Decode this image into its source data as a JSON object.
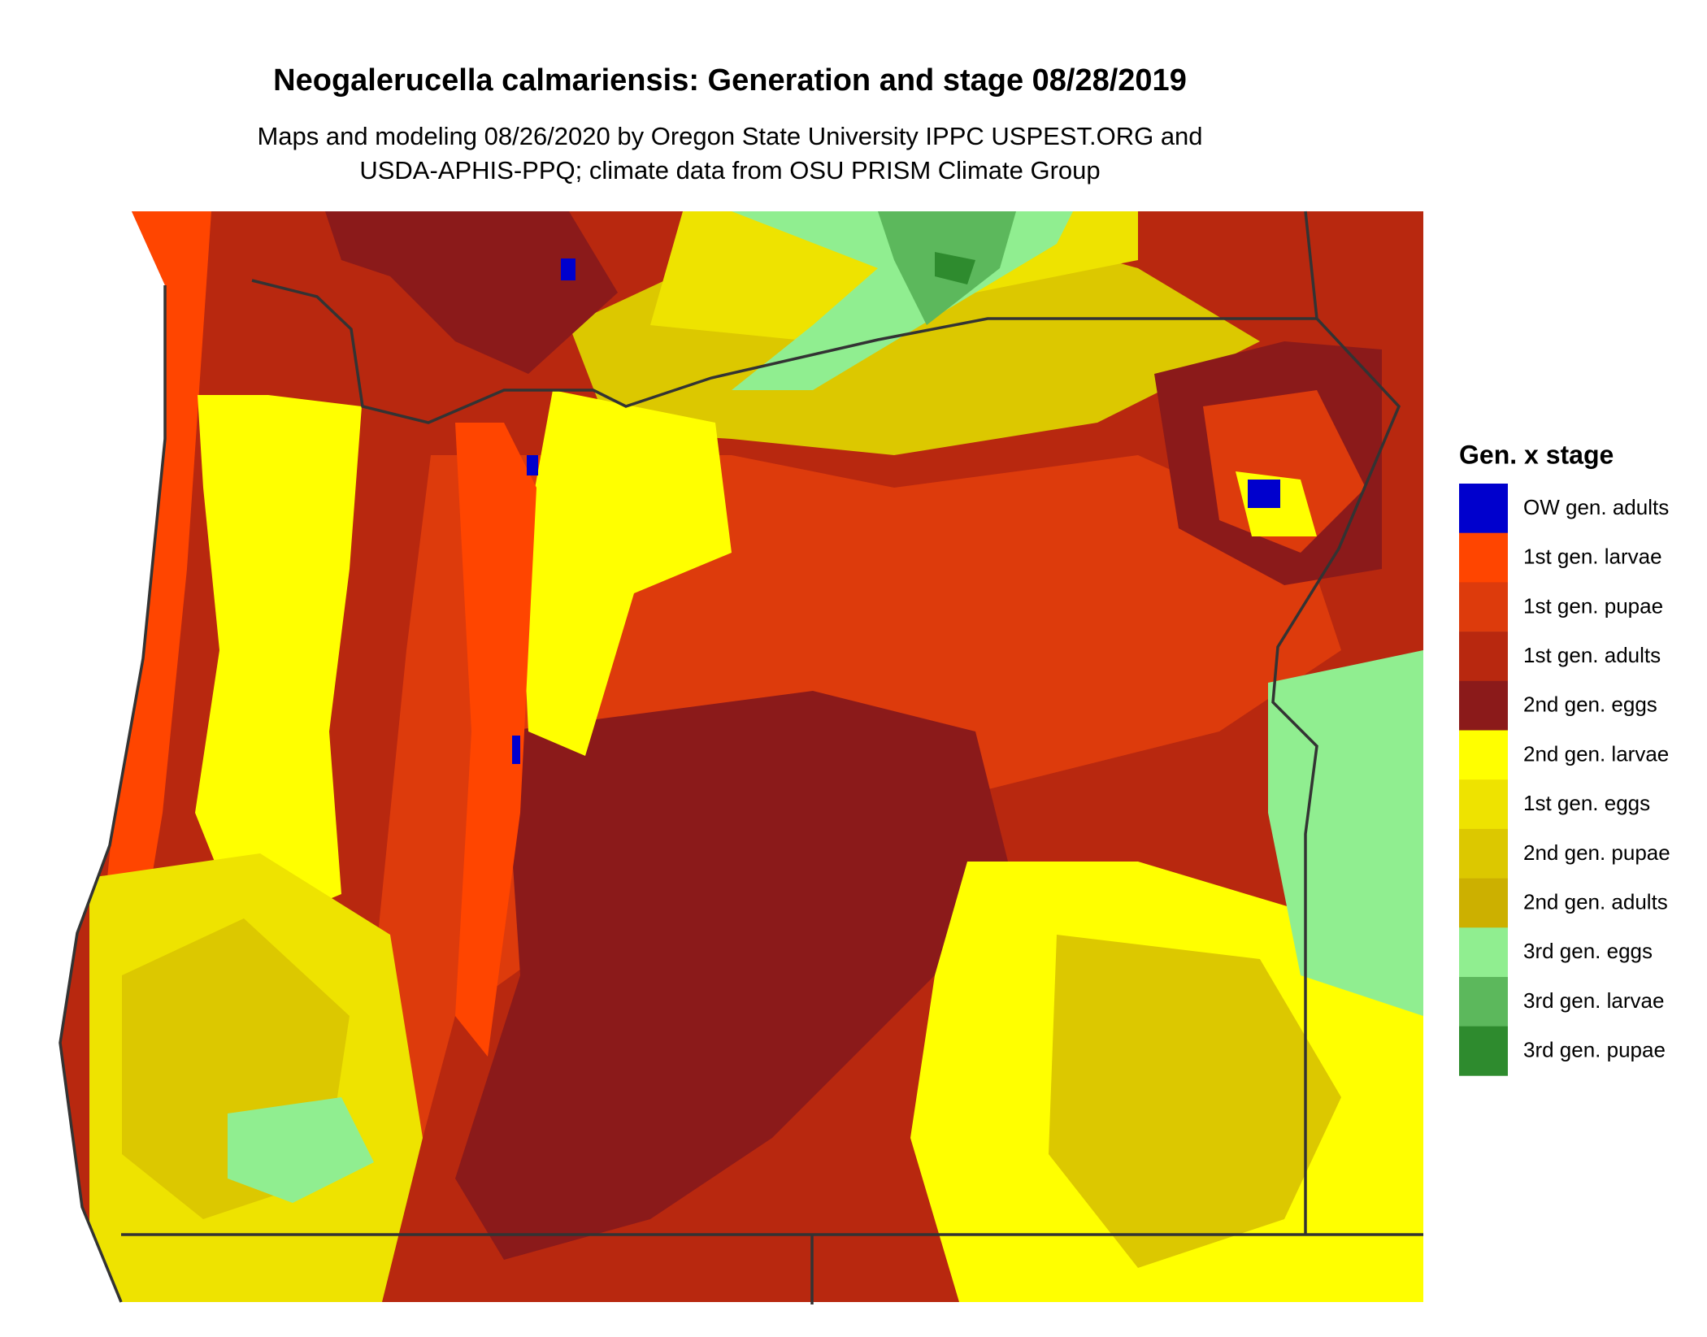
{
  "title": "Neogalerucella calmariensis: Generation and stage 08/28/2019",
  "subtitle": [
    "Maps and modeling 08/26/2020 by Oregon State University IPPC USPEST.ORG and",
    "USDA-APHIS-PPQ; climate data from OSU PRISM Climate Group"
  ],
  "legend": {
    "title": "Gen. x stage",
    "items": [
      {
        "label": "OW gen. adults",
        "color": "#0000cd"
      },
      {
        "label": "1st gen. larvae",
        "color": "#ff4500"
      },
      {
        "label": "1st gen. pupae",
        "color": "#dd3b0c"
      },
      {
        "label": "1st gen. adults",
        "color": "#b8280f"
      },
      {
        "label": "2nd gen. eggs",
        "color": "#8b1a1a"
      },
      {
        "label": "2nd gen. larvae",
        "color": "#ffff00"
      },
      {
        "label": "1st gen. eggs",
        "color": "#eee300"
      },
      {
        "label": "2nd gen. pupae",
        "color": "#dcc800"
      },
      {
        "label": "2nd gen. adults",
        "color": "#ccb000"
      },
      {
        "label": "3rd gen. eggs",
        "color": "#90ee90"
      },
      {
        "label": "3rd gen. larvae",
        "color": "#5cb85c"
      },
      {
        "label": "3rd gen. pupae",
        "color": "#2e8b2e"
      }
    ]
  }
}
